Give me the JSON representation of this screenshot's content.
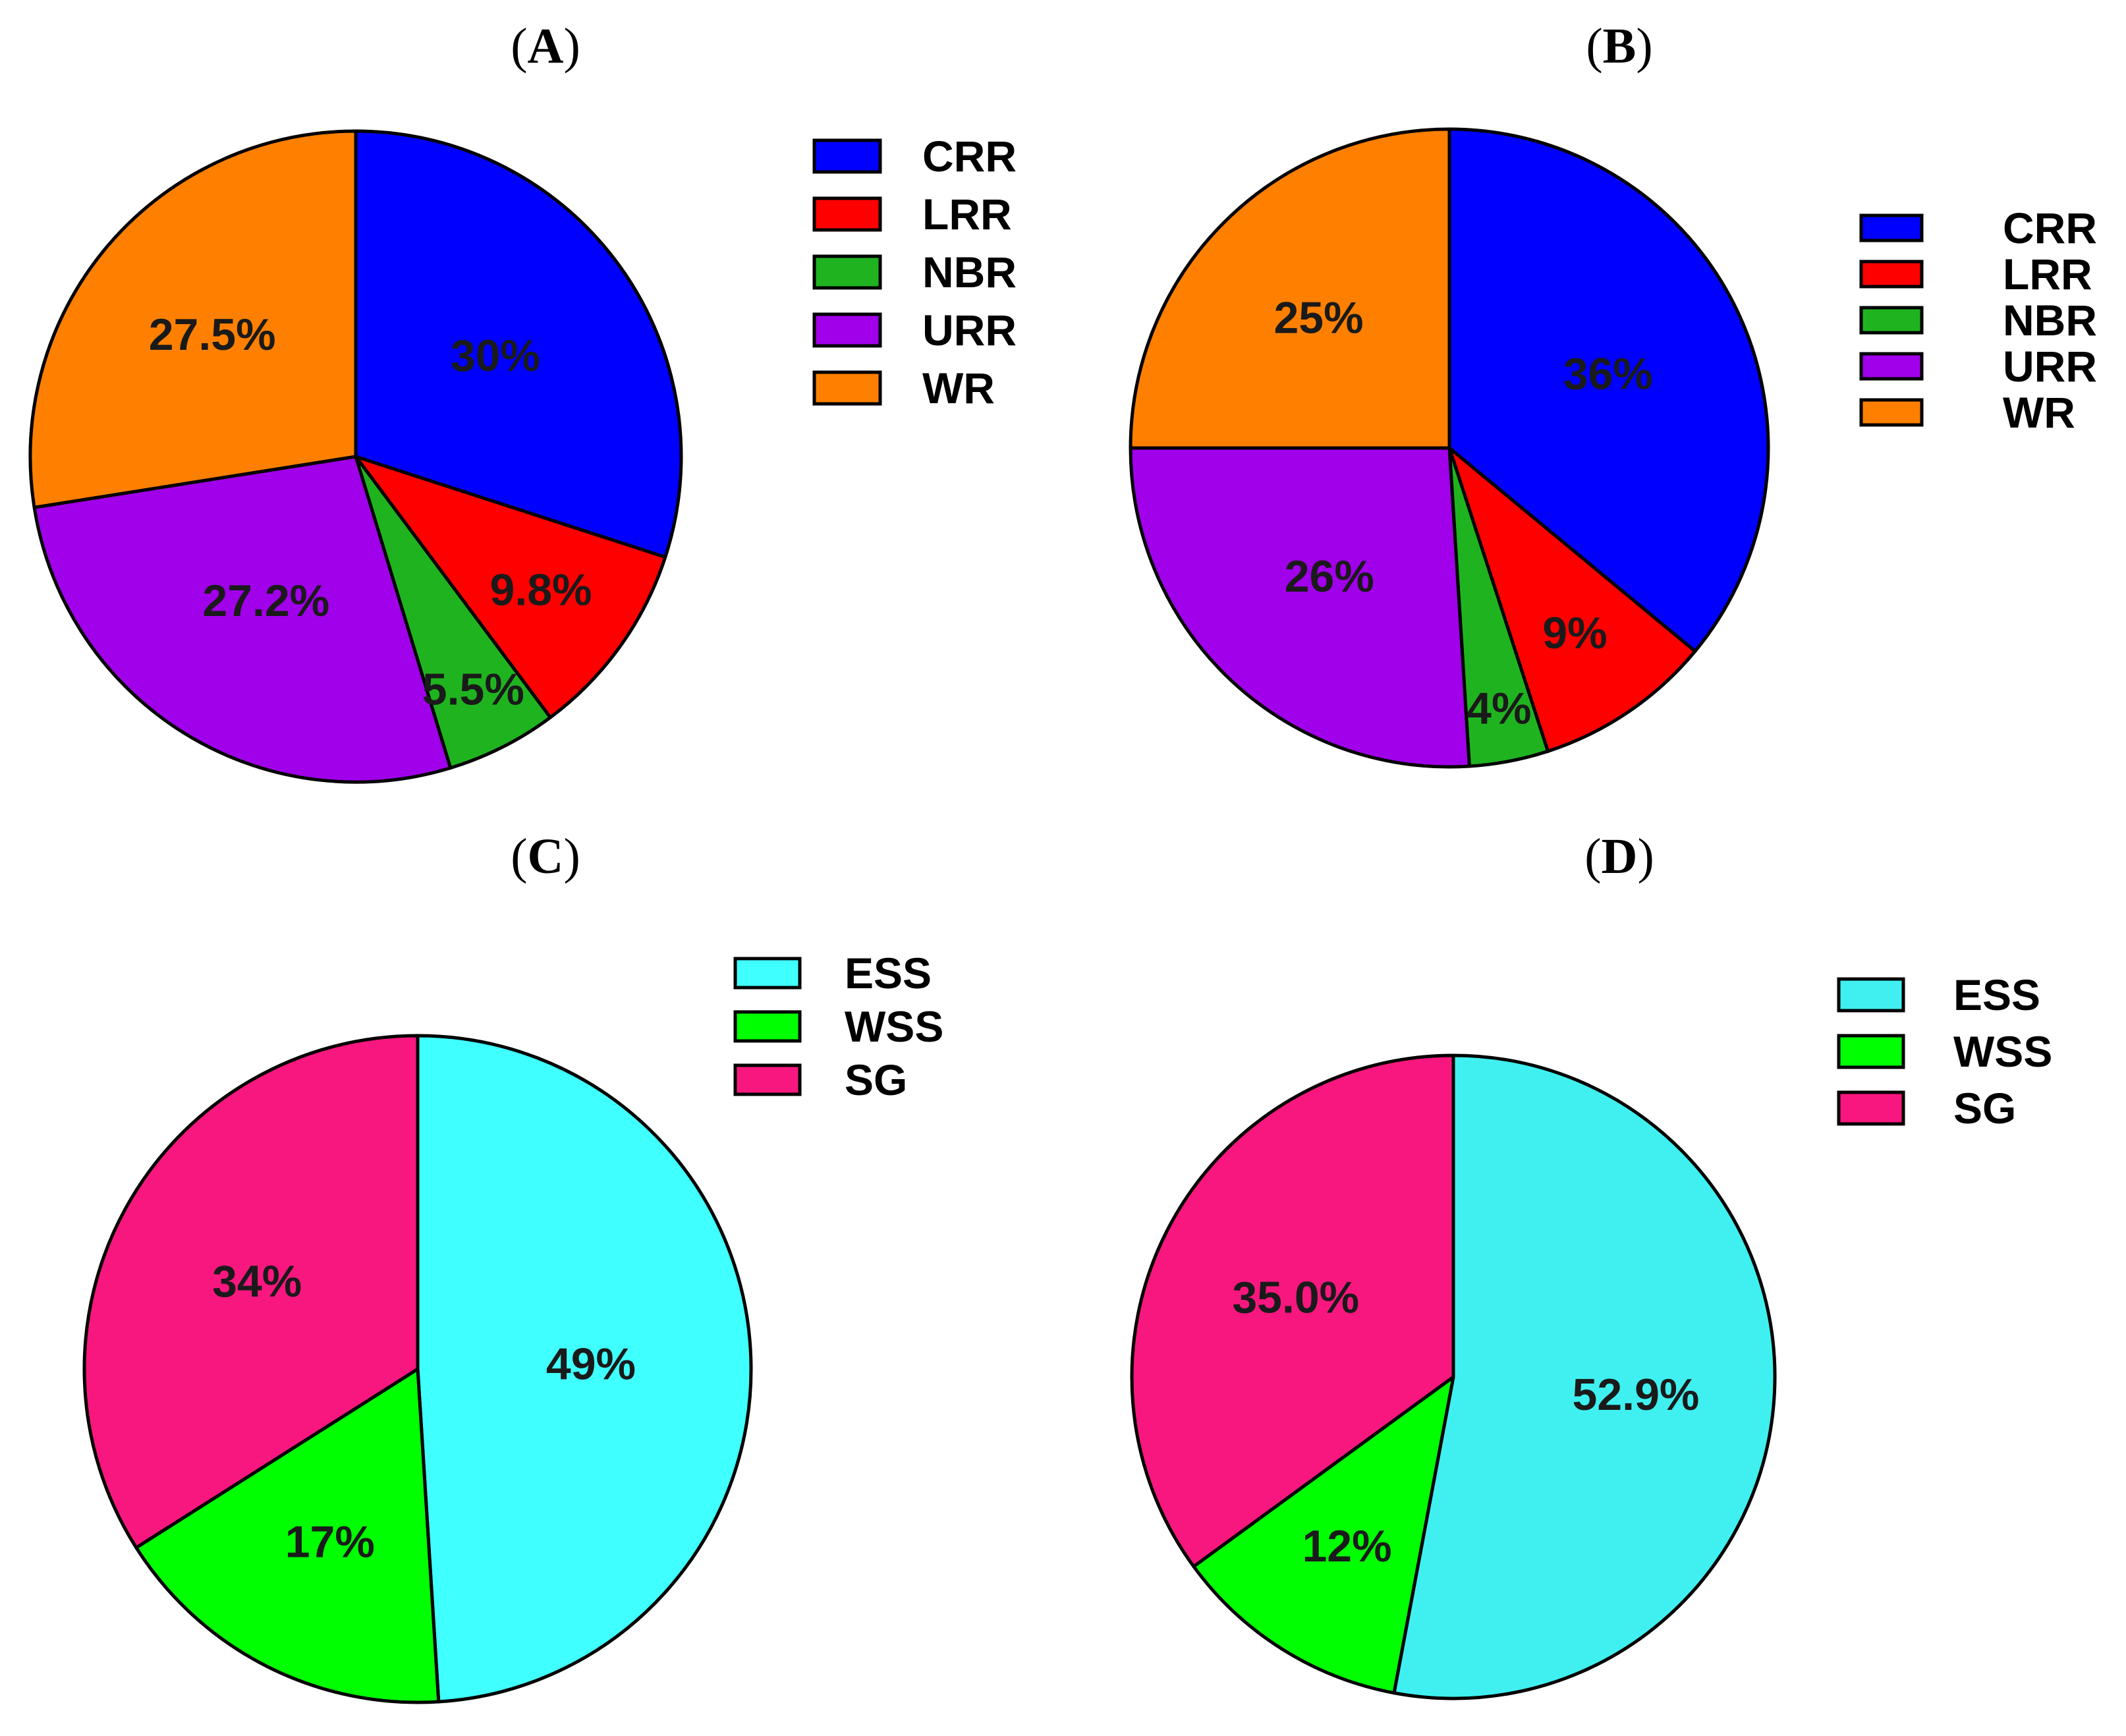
{
  "chart_data": [
    {
      "type": "pie",
      "panel": "A",
      "title": "(A)",
      "categories": [
        "CRR",
        "LRR",
        "NBR",
        "URR",
        "WR"
      ],
      "values": [
        30,
        9.8,
        5.5,
        27.2,
        27.5
      ],
      "labels": [
        "30%",
        "9.8%",
        "5.5%",
        "27.2%",
        "27.5%"
      ],
      "colors": [
        "#0000ff",
        "#ff0000",
        "#1fb41f",
        "#a100ea",
        "#ff8000"
      ],
      "legend": "right"
    },
    {
      "type": "pie",
      "panel": "B",
      "title": "(B)",
      "categories": [
        "CRR",
        "LRR",
        "NBR",
        "URR",
        "WR"
      ],
      "values": [
        36,
        9,
        4,
        26,
        25
      ],
      "labels": [
        "36%",
        "9%",
        "4%",
        "26%",
        "25%"
      ],
      "colors": [
        "#0000ff",
        "#ff0000",
        "#1fb41f",
        "#a100ea",
        "#ff8000"
      ],
      "legend": "right"
    },
    {
      "type": "pie",
      "panel": "C",
      "title": "(C)",
      "categories": [
        "ESS",
        "WSS",
        "SG"
      ],
      "values": [
        49,
        17,
        34
      ],
      "labels": [
        "49%",
        "17%",
        "34%"
      ],
      "colors": [
        "#40ffff",
        "#00ff00",
        "#f8177f"
      ],
      "legend": "top-right"
    },
    {
      "type": "pie",
      "panel": "D",
      "title": "(D)",
      "categories": [
        "ESS",
        "WSS",
        "SG"
      ],
      "values": [
        52.9,
        12,
        35.0
      ],
      "labels": [
        "52.9%",
        "12%",
        "35.0%"
      ],
      "colors": [
        "#40f0f0",
        "#00ff00",
        "#f8177f"
      ],
      "legend": "top-right"
    }
  ]
}
